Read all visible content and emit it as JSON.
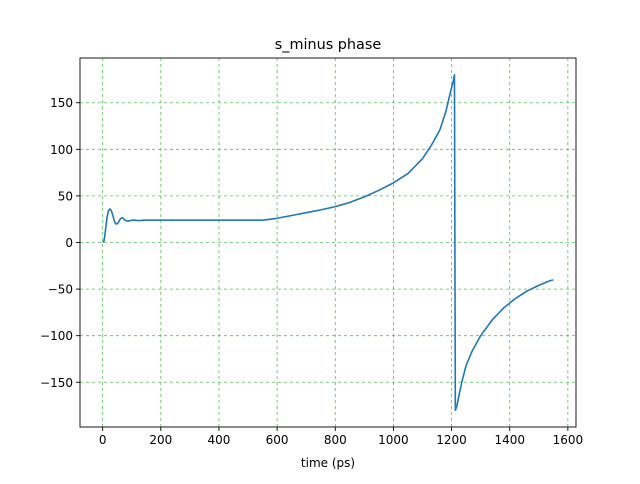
{
  "chart_data": {
    "type": "line",
    "title": "s_minus phase",
    "xlabel": "time (ps)",
    "ylabel": "",
    "xlim": [
      -78,
      1628
    ],
    "ylim": [
      -198,
      198
    ],
    "xticks": [
      0,
      200,
      400,
      600,
      800,
      1000,
      1200,
      1400,
      1600
    ],
    "yticks": [
      -150,
      -100,
      -50,
      0,
      50,
      100,
      150
    ],
    "ytick_labels": [
      "−150",
      "−100",
      "−50",
      "0",
      "50",
      "100",
      "150"
    ],
    "grid": true,
    "legend": "none",
    "colors": {
      "line": "#1f77b4",
      "grid": "#5cb85c",
      "axes": "#000000"
    },
    "series": [
      {
        "x": [
          0,
          5,
          10,
          15,
          20,
          25,
          30,
          35,
          40,
          45,
          50,
          55,
          60,
          65,
          70,
          75,
          80,
          85,
          90,
          95,
          100,
          110,
          120,
          130,
          140,
          150,
          160,
          180,
          200,
          250,
          300,
          350,
          400,
          450,
          500,
          550,
          565,
          600,
          650,
          700,
          750,
          800,
          850,
          900,
          950,
          1000,
          1050,
          1100,
          1130,
          1160,
          1180,
          1195,
          1205,
          1210,
          1213,
          1218,
          1225,
          1235,
          1250,
          1270,
          1300,
          1340,
          1380,
          1420,
          1460,
          1500,
          1530,
          1550
        ],
        "y": [
          0,
          2,
          14,
          27,
          34,
          36,
          34,
          29,
          23,
          20,
          20,
          22,
          25,
          26.5,
          26,
          24.5,
          23.5,
          23,
          23,
          23.5,
          24,
          24,
          23.5,
          23.5,
          24,
          24,
          24,
          24,
          24,
          24,
          24,
          24,
          24,
          24,
          24,
          24,
          24.5,
          26,
          29,
          32,
          35,
          38.5,
          43,
          49,
          56,
          64,
          74,
          90,
          104,
          121,
          140,
          160,
          172,
          180,
          -180,
          -176,
          -165,
          -150,
          -132,
          -117,
          -100,
          -83,
          -70,
          -60,
          -52,
          -46,
          -42,
          -40
        ]
      }
    ]
  }
}
